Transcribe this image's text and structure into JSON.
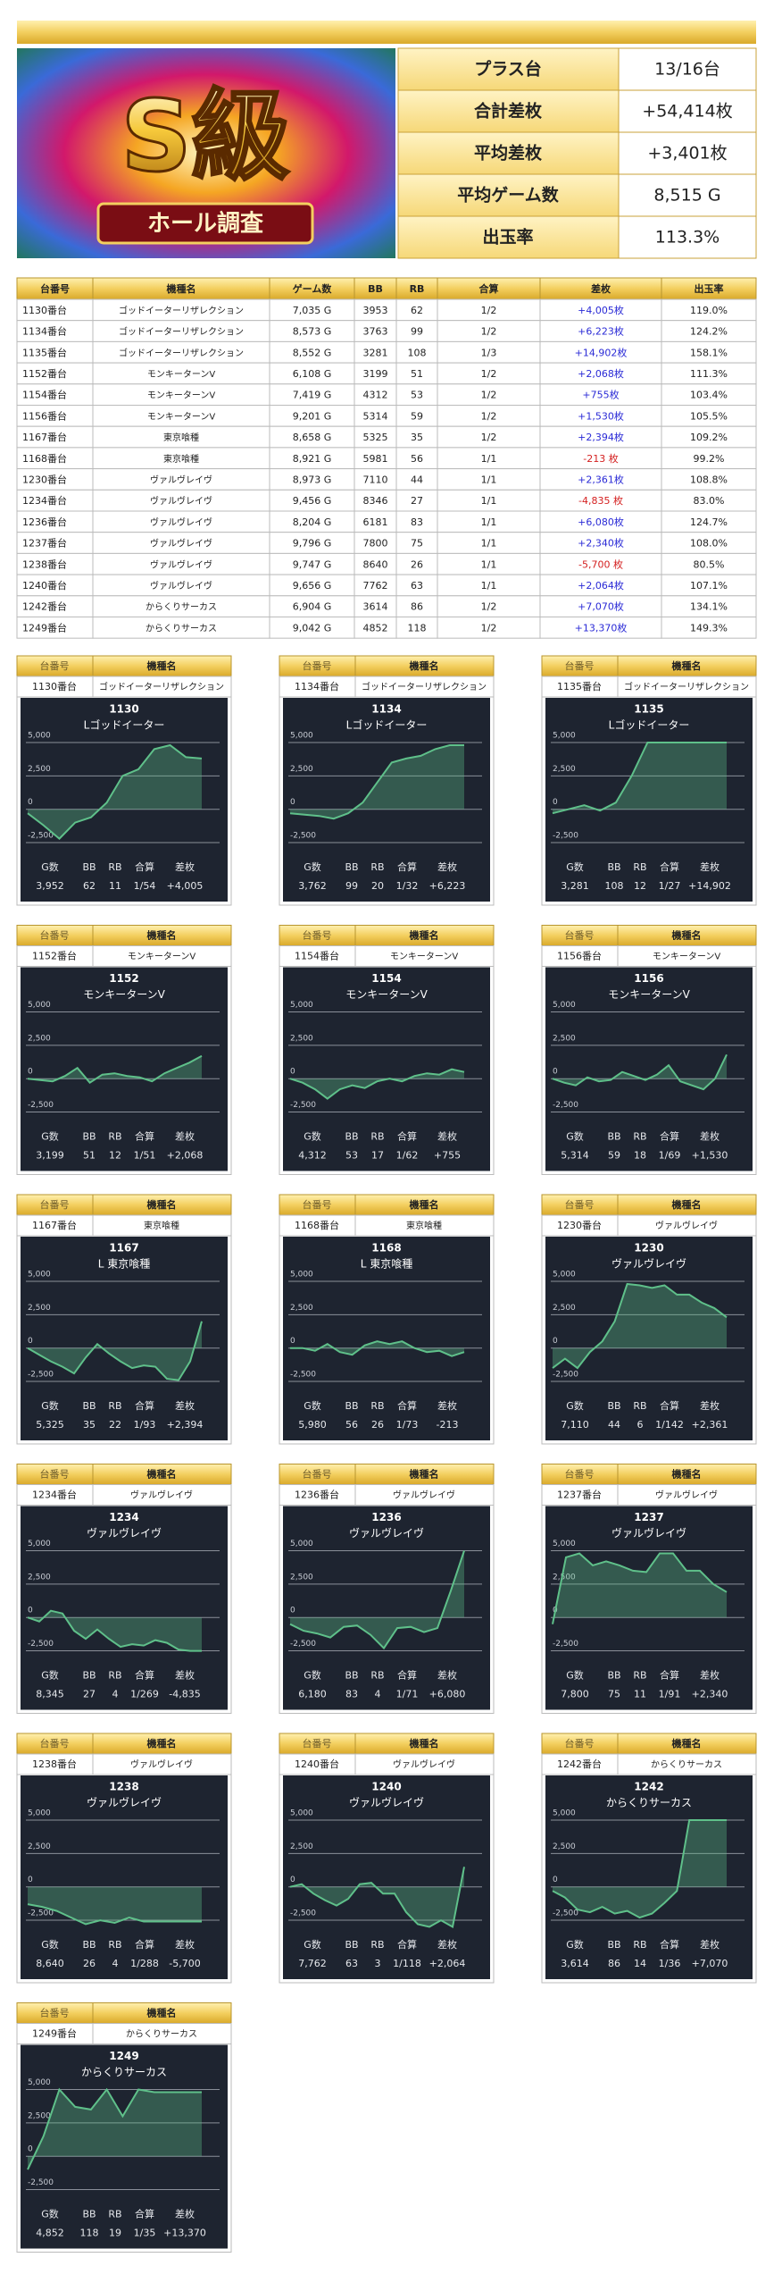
{
  "banner": {
    "title": "S級",
    "subtitle": "ホール調査"
  },
  "summary": {
    "rows": [
      [
        "プラス台",
        "13/16台"
      ],
      [
        "合計差枚",
        "+54,414枚"
      ],
      [
        "平均差枚",
        "+3,401枚"
      ],
      [
        "平均ゲーム数",
        "8,515 G"
      ],
      [
        "出玉率",
        "113.3%"
      ]
    ]
  },
  "table": {
    "header": [
      "台番号",
      "機種名",
      "ゲーム数",
      "BB",
      "RB",
      "合算",
      "差枚",
      "出玉率"
    ],
    "positive_color": "#2a2ad6",
    "negative_color": "#d42020",
    "rows": [
      [
        "1130番台",
        "ゴッドイーターリザレクション",
        "7,035 G",
        "3953",
        "62",
        "1/2",
        "+4,005枚",
        "119.0%"
      ],
      [
        "1134番台",
        "ゴッドイーターリザレクション",
        "8,573 G",
        "3763",
        "99",
        "1/2",
        "+6,223枚",
        "124.2%"
      ],
      [
        "1135番台",
        "ゴッドイーターリザレクション",
        "8,552 G",
        "3281",
        "108",
        "1/3",
        "+14,902枚",
        "158.1%"
      ],
      [
        "1152番台",
        "モンキーターンV",
        "6,108 G",
        "3199",
        "51",
        "1/2",
        "+2,068枚",
        "111.3%"
      ],
      [
        "1154番台",
        "モンキーターンV",
        "7,419 G",
        "4312",
        "53",
        "1/2",
        "+755枚",
        "103.4%"
      ],
      [
        "1156番台",
        "モンキーターンV",
        "9,201 G",
        "5314",
        "59",
        "1/2",
        "+1,530枚",
        "105.5%"
      ],
      [
        "1167番台",
        "東京喰種",
        "8,658 G",
        "5325",
        "35",
        "1/2",
        "+2,394枚",
        "109.2%"
      ],
      [
        "1168番台",
        "東京喰種",
        "8,921 G",
        "5981",
        "56",
        "1/1",
        "-213 枚",
        "99.2%"
      ],
      [
        "1230番台",
        "ヴァルヴレイヴ",
        "8,973 G",
        "7110",
        "44",
        "1/1",
        "+2,361枚",
        "108.8%"
      ],
      [
        "1234番台",
        "ヴァルヴレイヴ",
        "9,456 G",
        "8346",
        "27",
        "1/1",
        "-4,835 枚",
        "83.0%"
      ],
      [
        "1236番台",
        "ヴァルヴレイヴ",
        "8,204 G",
        "6181",
        "83",
        "1/1",
        "+6,080枚",
        "124.7%"
      ],
      [
        "1237番台",
        "ヴァルヴレイヴ",
        "9,796 G",
        "7800",
        "75",
        "1/1",
        "+2,340枚",
        "108.0%"
      ],
      [
        "1238番台",
        "ヴァルヴレイヴ",
        "9,747 G",
        "8640",
        "26",
        "1/1",
        "-5,700 枚",
        "80.5%"
      ],
      [
        "1240番台",
        "ヴァルヴレイヴ",
        "9,656 G",
        "7762",
        "63",
        "1/1",
        "+2,064枚",
        "107.1%"
      ],
      [
        "1242番台",
        "からくりサーカス",
        "6,904 G",
        "3614",
        "86",
        "1/2",
        "+7,070枚",
        "134.1%"
      ],
      [
        "1249番台",
        "からくりサーカス",
        "9,042 G",
        "4852",
        "118",
        "1/2",
        "+13,370枚",
        "149.3%"
      ]
    ]
  },
  "card_stat_labels": [
    "G数",
    "BB",
    "RB",
    "合算",
    "差枚"
  ],
  "chart_data": [
    {
      "type": "line",
      "title": "1130",
      "subtitle": "Lゴッドイーター",
      "stats": [
        "3,952",
        "62",
        "11",
        "1/54",
        "+4,005"
      ],
      "color": "#5fc08a",
      "ylim": [
        -3500,
        5600
      ],
      "yticks": [
        {
          "value": 5000,
          "label": "5,000"
        },
        {
          "value": 2500,
          "label": "2,500"
        },
        0,
        {
          "value": -2500,
          "label": "-2,500"
        }
      ],
      "values": [
        -300,
        -1200,
        -2200,
        -1000,
        -600,
        500,
        2500,
        3000,
        4500,
        4800,
        3900,
        3800
      ]
    },
    {
      "type": "line",
      "title": "1134",
      "subtitle": "Lゴッドイーター",
      "stats": [
        "3,762",
        "99",
        "20",
        "1/32",
        "+6,223"
      ],
      "color": "#5fc08a",
      "ylim": [
        -3500,
        5600
      ],
      "yticks": [
        {
          "value": 5000,
          "label": "5,000"
        },
        {
          "value": 2500,
          "label": "2,500"
        },
        0,
        {
          "value": -2500,
          "label": "-2,500"
        }
      ],
      "values": [
        -300,
        -400,
        -500,
        -700,
        -300,
        500,
        2000,
        3500,
        3800,
        4000,
        4500,
        4800,
        4800
      ]
    },
    {
      "type": "line",
      "title": "1135",
      "subtitle": "Lゴッドイーター",
      "stats": [
        "3,281",
        "108",
        "12",
        "1/27",
        "+14,902"
      ],
      "color": "#5fc08a",
      "ylim": [
        -3500,
        5600
      ],
      "yticks": [
        {
          "value": 5000,
          "label": "5,000"
        },
        {
          "value": 2500,
          "label": "2,500"
        },
        0,
        {
          "value": -2500,
          "label": "-2,500"
        }
      ],
      "values": [
        -300,
        0,
        300,
        -100,
        500,
        2500,
        5000,
        5000,
        5000,
        5000,
        5000,
        5000
      ]
    },
    {
      "type": "line",
      "title": "1152",
      "subtitle": "モンキーターンV",
      "stats": [
        "3,199",
        "51",
        "12",
        "1/51",
        "+2,068"
      ],
      "color": "#5fc08a",
      "ylim": [
        -3500,
        5600
      ],
      "yticks": [
        {
          "value": 5000,
          "label": "5,000"
        },
        {
          "value": 2500,
          "label": "2,500"
        },
        0,
        {
          "value": -2500,
          "label": "-2,500"
        }
      ],
      "values": [
        0,
        -100,
        -200,
        200,
        800,
        -300,
        300,
        400,
        200,
        100,
        -200,
        400,
        800,
        1200,
        1700
      ]
    },
    {
      "type": "line",
      "title": "1154",
      "subtitle": "モンキーターンV",
      "stats": [
        "4,312",
        "53",
        "17",
        "1/62",
        "+755"
      ],
      "color": "#5fc08a",
      "ylim": [
        -3500,
        5600
      ],
      "yticks": [
        {
          "value": 5000,
          "label": "5,000"
        },
        {
          "value": 2500,
          "label": "2,500"
        },
        0,
        {
          "value": -2500,
          "label": "-2,500"
        }
      ],
      "values": [
        0,
        -300,
        -800,
        -1500,
        -800,
        -500,
        -700,
        -200,
        0,
        -200,
        200,
        400,
        300,
        700,
        500
      ]
    },
    {
      "type": "line",
      "title": "1156",
      "subtitle": "モンキーターンV",
      "stats": [
        "5,314",
        "59",
        "18",
        "1/69",
        "+1,530"
      ],
      "color": "#5fc08a",
      "ylim": [
        -3500,
        5600
      ],
      "yticks": [
        {
          "value": 5000,
          "label": "5,000"
        },
        {
          "value": 2500,
          "label": "2,500"
        },
        0,
        {
          "value": -2500,
          "label": "-2,500"
        }
      ],
      "values": [
        0,
        -300,
        -500,
        100,
        -200,
        -100,
        500,
        200,
        -100,
        300,
        1000,
        -200,
        -500,
        -800,
        0,
        1800
      ]
    },
    {
      "type": "line",
      "title": "1167",
      "subtitle": "L 東京喰種",
      "stats": [
        "5,325",
        "35",
        "22",
        "1/93",
        "+2,394"
      ],
      "color": "#5fc08a",
      "ylim": [
        -3500,
        5600
      ],
      "yticks": [
        {
          "value": 5000,
          "label": "5,000"
        },
        {
          "value": 2500,
          "label": "2,500"
        },
        0,
        {
          "value": -2500,
          "label": "-2,500"
        }
      ],
      "values": [
        0,
        -500,
        -1000,
        -1400,
        -1900,
        -700,
        300,
        -400,
        -1000,
        -1500,
        -1300,
        -1400,
        -2300,
        -2400,
        -1000,
        2000
      ]
    },
    {
      "type": "line",
      "title": "1168",
      "subtitle": "L 東京喰種",
      "stats": [
        "5,980",
        "56",
        "26",
        "1/73",
        "-213"
      ],
      "color": "#5fc08a",
      "ylim": [
        -3500,
        5600
      ],
      "yticks": [
        {
          "value": 5000,
          "label": "5,000"
        },
        {
          "value": 2500,
          "label": "2,500"
        },
        0,
        {
          "value": -2500,
          "label": "-2,500"
        }
      ],
      "values": [
        0,
        0,
        -200,
        300,
        -300,
        -500,
        200,
        500,
        300,
        500,
        0,
        -300,
        -200,
        -600,
        -300
      ]
    },
    {
      "type": "line",
      "title": "1230",
      "subtitle": "ヴァルヴレイヴ",
      "stats": [
        "7,110",
        "44",
        "6",
        "1/142",
        "+2,361"
      ],
      "color": "#5fc08a",
      "ylim": [
        -3500,
        5600
      ],
      "yticks": [
        {
          "value": 5000,
          "label": "5,000"
        },
        {
          "value": 2500,
          "label": "2,500"
        },
        0,
        {
          "value": -2500,
          "label": "-2,500"
        }
      ],
      "values": [
        -1500,
        -800,
        -1500,
        -300,
        500,
        2000,
        4800,
        4700,
        4500,
        4700,
        4000,
        4000,
        3400,
        3000,
        2300
      ]
    },
    {
      "type": "line",
      "title": "1234",
      "subtitle": "ヴァルヴレイヴ",
      "stats": [
        "8,345",
        "27",
        "4",
        "1/269",
        "-4,835"
      ],
      "color": "#5fc08a",
      "ylim": [
        -3500,
        5600
      ],
      "yticks": [
        {
          "value": 5000,
          "label": "5,000"
        },
        {
          "value": 2500,
          "label": "2,500"
        },
        0,
        {
          "value": -2500,
          "label": "-2,500"
        }
      ],
      "values": [
        0,
        -300,
        500,
        300,
        -1000,
        -1600,
        -900,
        -1600,
        -2200,
        -2000,
        -2100,
        -1700,
        -1900,
        -2400,
        -2500,
        -2500
      ]
    },
    {
      "type": "line",
      "title": "1236",
      "subtitle": "ヴァルヴレイヴ",
      "stats": [
        "6,180",
        "83",
        "4",
        "1/71",
        "+6,080"
      ],
      "color": "#5fc08a",
      "ylim": [
        -3500,
        5600
      ],
      "yticks": [
        {
          "value": 5000,
          "label": "5,000"
        },
        {
          "value": 2500,
          "label": "2,500"
        },
        0,
        {
          "value": -2500,
          "label": "-2,500"
        }
      ],
      "values": [
        -500,
        -1000,
        -1200,
        -1500,
        -700,
        -600,
        -1300,
        -2300,
        -800,
        -700,
        -1100,
        -800,
        2000,
        5000
      ]
    },
    {
      "type": "line",
      "title": "1237",
      "subtitle": "ヴァルヴレイヴ",
      "stats": [
        "7,800",
        "75",
        "11",
        "1/91",
        "+2,340"
      ],
      "color": "#5fc08a",
      "ylim": [
        -3500,
        5600
      ],
      "yticks": [
        {
          "value": 5000,
          "label": "5,000"
        },
        {
          "value": 2500,
          "label": "2,500"
        },
        0,
        {
          "value": -2500,
          "label": "-2,500"
        }
      ],
      "values": [
        -500,
        4500,
        4800,
        3900,
        4200,
        3900,
        3500,
        3400,
        4800,
        4800,
        3500,
        3500,
        2500,
        1900
      ]
    },
    {
      "type": "line",
      "title": "1238",
      "subtitle": "ヴァルヴレイヴ",
      "stats": [
        "8,640",
        "26",
        "4",
        "1/288",
        "-5,700"
      ],
      "color": "#5fc08a",
      "ylim": [
        -3500,
        5600
      ],
      "yticks": [
        {
          "value": 5000,
          "label": "5,000"
        },
        {
          "value": 2500,
          "label": "2,500"
        },
        0,
        {
          "value": -2500,
          "label": "-2,500"
        }
      ],
      "values": [
        -1300,
        -1500,
        -1800,
        -2300,
        -2800,
        -2500,
        -2700,
        -2300,
        -2600,
        -2600,
        -2600,
        -2600,
        -2600
      ]
    },
    {
      "type": "line",
      "title": "1240",
      "subtitle": "ヴァルヴレイヴ",
      "stats": [
        "7,762",
        "63",
        "3",
        "1/118",
        "+2,064"
      ],
      "color": "#5fc08a",
      "ylim": [
        -3500,
        5600
      ],
      "yticks": [
        {
          "value": 5000,
          "label": "5,000"
        },
        {
          "value": 2500,
          "label": "2,500"
        },
        0,
        {
          "value": -2500,
          "label": "-2,500"
        }
      ],
      "values": [
        0,
        200,
        -500,
        -1000,
        -1400,
        -900,
        200,
        300,
        -500,
        -500,
        -1900,
        -2800,
        -3000,
        -2500,
        -3000,
        1500
      ]
    },
    {
      "type": "line",
      "title": "1242",
      "subtitle": "からくりサーカス",
      "stats": [
        "3,614",
        "86",
        "14",
        "1/36",
        "+7,070"
      ],
      "color": "#5fc08a",
      "ylim": [
        -3500,
        5600
      ],
      "yticks": [
        {
          "value": 5000,
          "label": "5,000"
        },
        {
          "value": 2500,
          "label": "2,500"
        },
        0,
        {
          "value": -2500,
          "label": "-2,500"
        }
      ],
      "values": [
        -300,
        -800,
        -1700,
        -1900,
        -1500,
        -2000,
        -1800,
        -2300,
        -2000,
        -1200,
        -300,
        5000,
        5000,
        5000,
        5000
      ]
    },
    {
      "type": "line",
      "title": "1249",
      "subtitle": "からくりサーカス",
      "stats": [
        "4,852",
        "118",
        "19",
        "1/35",
        "+13,370"
      ],
      "color": "#5fc08a",
      "ylim": [
        -3500,
        5600
      ],
      "yticks": [
        {
          "value": 5000,
          "label": "5,000"
        },
        {
          "value": 2500,
          "label": "2,500"
        },
        0,
        {
          "value": -2500,
          "label": "-2,500"
        }
      ],
      "values": [
        -1000,
        1500,
        5000,
        3700,
        3500,
        5000,
        3000,
        5000,
        4800,
        4800,
        4800,
        4800
      ]
    }
  ]
}
